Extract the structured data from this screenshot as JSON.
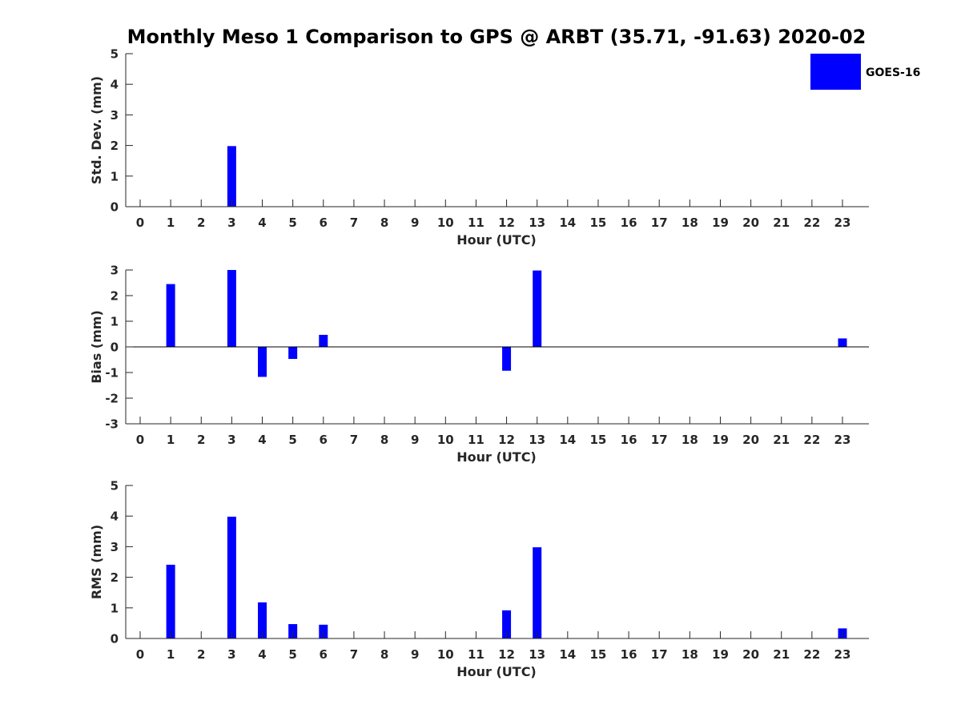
{
  "figure": {
    "title": "Monthly Meso 1 Comparison to GPS @ ARBT (35.71, -91.63) 2020-02"
  },
  "legend": {
    "label": "GOES-16",
    "color": "#0000ff",
    "placement": "top-right"
  },
  "chart_data": [
    {
      "type": "bar",
      "xlabel": "Hour (UTC)",
      "ylabel": "Std. Dev. (mm)",
      "ylim": [
        0,
        5
      ],
      "yticks": [
        "0",
        "1",
        "2",
        "3",
        "4",
        "5"
      ],
      "categories": [
        "0",
        "1",
        "2",
        "3",
        "4",
        "5",
        "6",
        "7",
        "8",
        "9",
        "10",
        "11",
        "12",
        "13",
        "14",
        "15",
        "16",
        "17",
        "18",
        "19",
        "20",
        "21",
        "22",
        "23"
      ],
      "series": [
        {
          "name": "GOES-16",
          "values": [
            0,
            0,
            0,
            1.98,
            0,
            0,
            0,
            0,
            0,
            0,
            0,
            0,
            0,
            0,
            0,
            0,
            0,
            0,
            0,
            0,
            0,
            0,
            0,
            0
          ]
        }
      ],
      "grid": false
    },
    {
      "type": "bar",
      "xlabel": "Hour (UTC)",
      "ylabel": "Bias (mm)",
      "ylim": [
        -3,
        3
      ],
      "yticks": [
        "-3",
        "-2",
        "-1",
        "0",
        "1",
        "2",
        "3"
      ],
      "categories": [
        "0",
        "1",
        "2",
        "3",
        "4",
        "5",
        "6",
        "7",
        "8",
        "9",
        "10",
        "11",
        "12",
        "13",
        "14",
        "15",
        "16",
        "17",
        "18",
        "19",
        "20",
        "21",
        "22",
        "23"
      ],
      "series": [
        {
          "name": "GOES-16",
          "values": [
            0,
            2.45,
            0,
            3.0,
            -1.17,
            -0.47,
            0.47,
            0,
            0,
            0,
            0,
            0,
            -0.93,
            2.98,
            0,
            0,
            0,
            0,
            0,
            0,
            0,
            0,
            0,
            0.33
          ]
        }
      ],
      "grid": false
    },
    {
      "type": "bar",
      "xlabel": "Hour (UTC)",
      "ylabel": "RMS (mm)",
      "ylim": [
        0,
        5
      ],
      "yticks": [
        "0",
        "1",
        "2",
        "3",
        "4",
        "5"
      ],
      "categories": [
        "0",
        "1",
        "2",
        "3",
        "4",
        "5",
        "6",
        "7",
        "8",
        "9",
        "10",
        "11",
        "12",
        "13",
        "14",
        "15",
        "16",
        "17",
        "18",
        "19",
        "20",
        "21",
        "22",
        "23"
      ],
      "series": [
        {
          "name": "GOES-16",
          "values": [
            0,
            2.41,
            0,
            3.98,
            1.18,
            0.47,
            0.45,
            0,
            0,
            0,
            0,
            0,
            0.92,
            2.98,
            0,
            0,
            0,
            0,
            0,
            0,
            0,
            0,
            0,
            0.33
          ]
        }
      ],
      "grid": false
    }
  ]
}
